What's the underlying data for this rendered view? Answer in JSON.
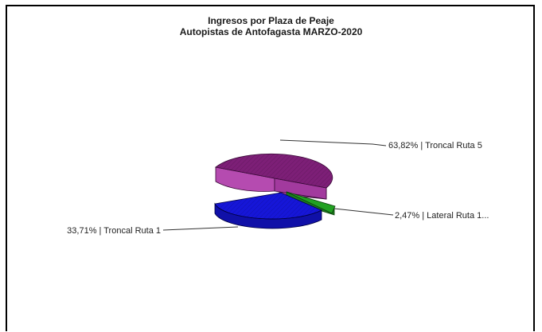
{
  "chart_data": {
    "type": "pie",
    "title": "Ingresos por Plaza de Peaje",
    "subtitle": "Autopistas de Antofagasta MARZO-2020",
    "slices": [
      {
        "label": "Troncal Ruta 5",
        "value": 63.82,
        "display": "63,82% | Troncal Ruta 5",
        "color": "#7d1f77"
      },
      {
        "label": "Lateral Ruta 1...",
        "value": 2.47,
        "display": "2,47% | Lateral Ruta 1...",
        "color": "#22a122"
      },
      {
        "label": "Troncal Ruta 1",
        "value": 33.71,
        "display": "33,71% | Troncal Ruta 1",
        "color": "#1616d8"
      }
    ]
  }
}
